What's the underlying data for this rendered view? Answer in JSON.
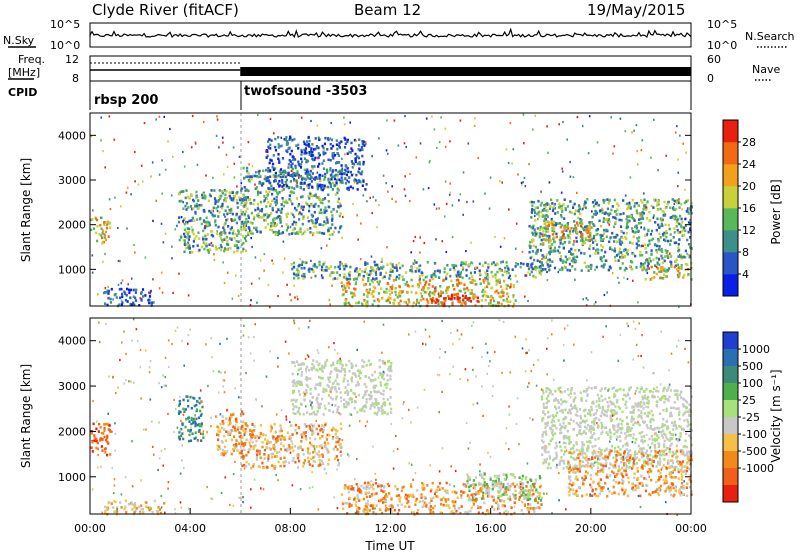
{
  "header": {
    "station": "Clyde River (fitACF)",
    "beam": "Beam 12",
    "date": "19/May/2015"
  },
  "top_panels": {
    "nsky_label": "N.Sky",
    "nsky_ticks": [
      "10^5",
      "10^0"
    ],
    "nsearch_label": "N.Search",
    "nsearch_ticks": [
      "10^5",
      "10^0"
    ],
    "freq_label": "Freq.",
    "freq_unit": "[MHz]",
    "freq_ticks": [
      "12",
      "8"
    ],
    "nave_label": "Nave",
    "nave_ticks": [
      "60",
      "0"
    ],
    "cpid_label": "CPID",
    "cpid_segments": [
      {
        "name": "rbsp 200",
        "start_hour": 0,
        "end_hour": 6
      },
      {
        "name": "twofsound -3503",
        "start_hour": 6,
        "end_hour": 24
      }
    ]
  },
  "chart_data": [
    {
      "type": "heatmap",
      "name": "power",
      "ylabel": "Slant Range [km]",
      "xlabel": "",
      "xlim": [
        0,
        24
      ],
      "ylim": [
        180,
        4500
      ],
      "yticks": [
        1000,
        2000,
        3000,
        4000
      ],
      "colorbar": {
        "label": "Power [dB]",
        "ticks": [
          "4",
          "8",
          "12",
          "16",
          "20",
          "24",
          "28"
        ],
        "range": [
          0,
          30
        ],
        "colors": [
          "#0b1ee8",
          "#2a55c4",
          "#3d8f8a",
          "#59b85c",
          "#c8d13a",
          "#f2a11d",
          "#f26a12",
          "#e82010"
        ]
      },
      "regions": [
        {
          "t0": 0,
          "t1": 0.8,
          "r0": 1600,
          "r1": 2200,
          "level": "high"
        },
        {
          "t0": 0.5,
          "t1": 2.5,
          "r0": 200,
          "r1": 600,
          "level": "low"
        },
        {
          "t0": 3.5,
          "t1": 6.2,
          "r0": 1400,
          "r1": 2800,
          "level": "mid"
        },
        {
          "t0": 6,
          "t1": 10,
          "r0": 1800,
          "r1": 3300,
          "level": "mid"
        },
        {
          "t0": 7,
          "t1": 11,
          "r0": 2800,
          "r1": 4000,
          "level": "low"
        },
        {
          "t0": 10,
          "t1": 17,
          "r0": 200,
          "r1": 800,
          "level": "high"
        },
        {
          "t0": 13.5,
          "t1": 15.5,
          "r0": 250,
          "r1": 500,
          "level": "max"
        },
        {
          "t0": 8,
          "t1": 18,
          "r0": 800,
          "r1": 1200,
          "level": "mid"
        },
        {
          "t0": 17.5,
          "t1": 24,
          "r0": 1000,
          "r1": 2600,
          "level": "mid"
        },
        {
          "t0": 18,
          "t1": 20,
          "r0": 1600,
          "r1": 2100,
          "level": "high"
        },
        {
          "t0": 22,
          "t1": 24,
          "r0": 800,
          "r1": 1100,
          "level": "high"
        }
      ]
    },
    {
      "type": "heatmap",
      "name": "velocity",
      "ylabel": "Slant Range [km]",
      "xlabel": "Time UT",
      "xlim": [
        0,
        24
      ],
      "ylim": [
        180,
        4500
      ],
      "yticks": [
        1000,
        2000,
        3000,
        4000
      ],
      "xticks": [
        "00:00",
        "04:00",
        "08:00",
        "12:00",
        "16:00",
        "20:00",
        "00:00"
      ],
      "colorbar": {
        "label": "Velocity [m s⁻¹]",
        "ticks": [
          "1000",
          "500",
          "100",
          "25",
          "-25",
          "-100",
          "-500",
          "-1000"
        ],
        "colors": [
          "#1e3fd0",
          "#2a6fb0",
          "#3d8a7a",
          "#4db04a",
          "#a8e07a",
          "#c8c8c8",
          "#f5c04a",
          "#f28a1a",
          "#f0601a",
          "#e82010"
        ]
      },
      "regions": [
        {
          "t0": 0,
          "t1": 0.8,
          "r0": 1500,
          "r1": 2200,
          "level": "neg_high"
        },
        {
          "t0": 0.5,
          "t1": 3,
          "r0": 200,
          "r1": 500,
          "level": "neg_low"
        },
        {
          "t0": 3.5,
          "t1": 4.5,
          "r0": 1800,
          "r1": 2800,
          "level": "pos"
        },
        {
          "t0": 5,
          "t1": 6.2,
          "r0": 1500,
          "r1": 2500,
          "level": "neg"
        },
        {
          "t0": 6,
          "t1": 10,
          "r0": 1200,
          "r1": 2200,
          "level": "neg"
        },
        {
          "t0": 8,
          "t1": 12,
          "r0": 2400,
          "r1": 3600,
          "level": "zero"
        },
        {
          "t0": 10,
          "t1": 18,
          "r0": 200,
          "r1": 900,
          "level": "neg"
        },
        {
          "t0": 15,
          "t1": 18,
          "r0": 500,
          "r1": 1100,
          "level": "pos_low"
        },
        {
          "t0": 18,
          "t1": 24,
          "r0": 1200,
          "r1": 3000,
          "level": "zero"
        },
        {
          "t0": 19,
          "t1": 24,
          "r0": 600,
          "r1": 1600,
          "level": "neg"
        }
      ]
    }
  ]
}
